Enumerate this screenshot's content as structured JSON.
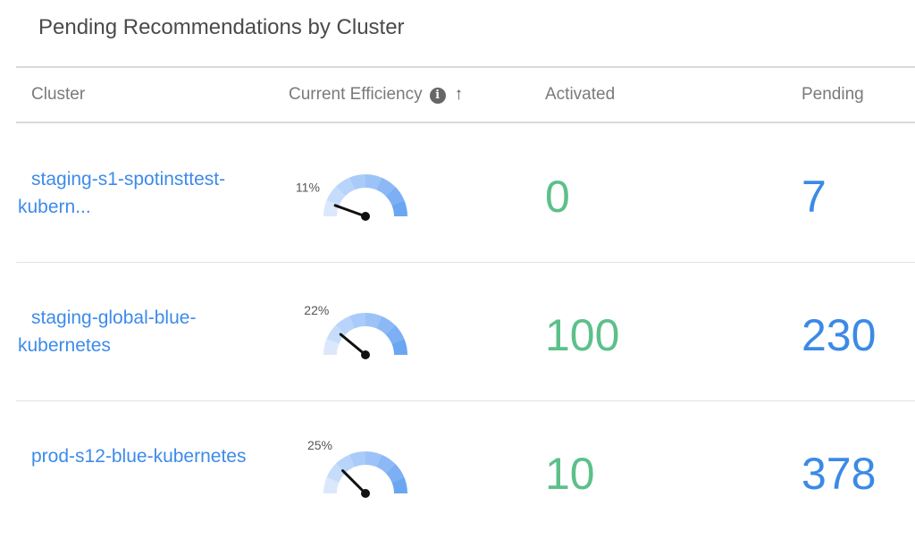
{
  "title": "Pending Recommendations by Cluster",
  "columns": {
    "cluster": "Cluster",
    "efficiency": "Current Efficiency",
    "activated": "Activated",
    "pending": "Pending"
  },
  "icons": {
    "info": "info-icon",
    "sort": "arrow-up-icon"
  },
  "info_glyph": "i",
  "sort_glyph": "↑",
  "colors": {
    "link": "#3d8bea",
    "activated": "#5cc08a",
    "pending": "#3b8ae6",
    "needle": "#111111"
  },
  "rows": [
    {
      "cluster": "staging-s1-spotinsttest-kubern...",
      "efficiency": 11,
      "efficiency_label": "11%",
      "activated": "0",
      "pending": "7"
    },
    {
      "cluster": "staging-global-blue-kubernetes",
      "efficiency": 22,
      "efficiency_label": "22%",
      "activated": "100",
      "pending": "230"
    },
    {
      "cluster": "prod-s12-blue-kubernetes",
      "efficiency": 25,
      "efficiency_label": "25%",
      "activated": "10",
      "pending": "378"
    }
  ]
}
